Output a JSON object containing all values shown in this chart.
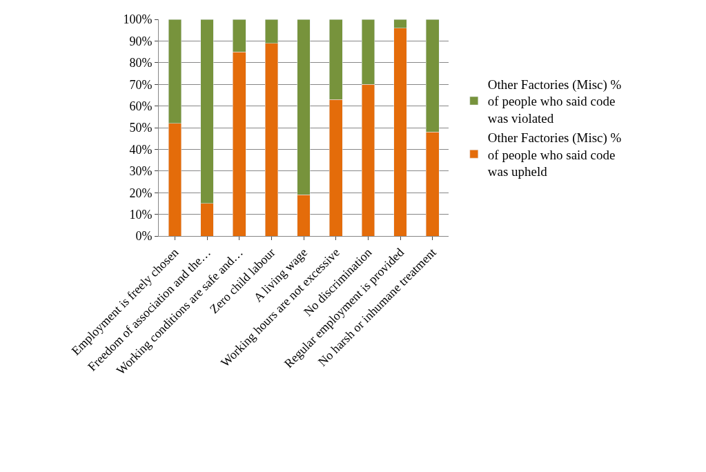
{
  "chart_data": {
    "type": "bar",
    "stacked": true,
    "categories": [
      "Employment is freely chosen",
      "Freedom of association and the…",
      "Working conditions are safe and…",
      "Zero child labour",
      "A living wage",
      "Working hours are not excessive",
      "No discrimination",
      "Regular employment is provided",
      "No harsh or inhumane treatment"
    ],
    "series": [
      {
        "name": "Other Factories (Misc) % of people who said code was upheld",
        "color": "#e46c0a",
        "values": [
          52,
          15,
          85,
          89,
          19,
          63,
          70,
          96,
          48
        ]
      },
      {
        "name": "Other Factories (Misc) % of people who said code was violated",
        "color": "#77933c",
        "values": [
          48,
          85,
          15,
          11,
          81,
          37,
          30,
          4,
          52
        ]
      }
    ],
    "ylim": [
      0,
      100
    ],
    "yticks": [
      {
        "value": 0,
        "label": "0%"
      },
      {
        "value": 10,
        "label": "10%"
      },
      {
        "value": 20,
        "label": "20%"
      },
      {
        "value": 30,
        "label": "30%"
      },
      {
        "value": 40,
        "label": "40%"
      },
      {
        "value": 50,
        "label": "50%"
      },
      {
        "value": 60,
        "label": "60%"
      },
      {
        "value": 70,
        "label": "70%"
      },
      {
        "value": 80,
        "label": "80%"
      },
      {
        "value": 90,
        "label": "90%"
      },
      {
        "value": 100,
        "label": "100%"
      }
    ],
    "grid": "y",
    "legend": "right"
  }
}
